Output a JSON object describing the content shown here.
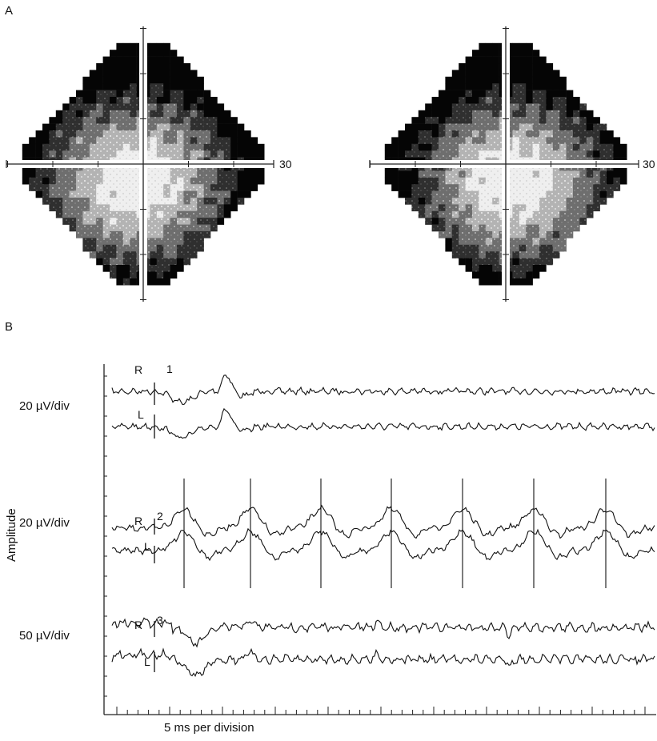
{
  "figure": {
    "panel_a": {
      "label": "A",
      "left_field": {
        "axis_end_label": "30"
      },
      "right_field": {
        "axis_end_label": "30"
      }
    },
    "panel_b": {
      "label": "B",
      "y_axis_title": "Amplitude",
      "x_axis_title": "5 ms per division",
      "recordings": [
        {
          "number": "1",
          "scale": "20 µV/div",
          "right_label": "R",
          "left_label": "L"
        },
        {
          "number": "2",
          "scale": "20 µV/div",
          "right_label": "R",
          "left_label": "L"
        },
        {
          "number": "3",
          "scale": "50 µV/div",
          "right_label": "R",
          "left_label": "L"
        }
      ]
    }
  }
}
